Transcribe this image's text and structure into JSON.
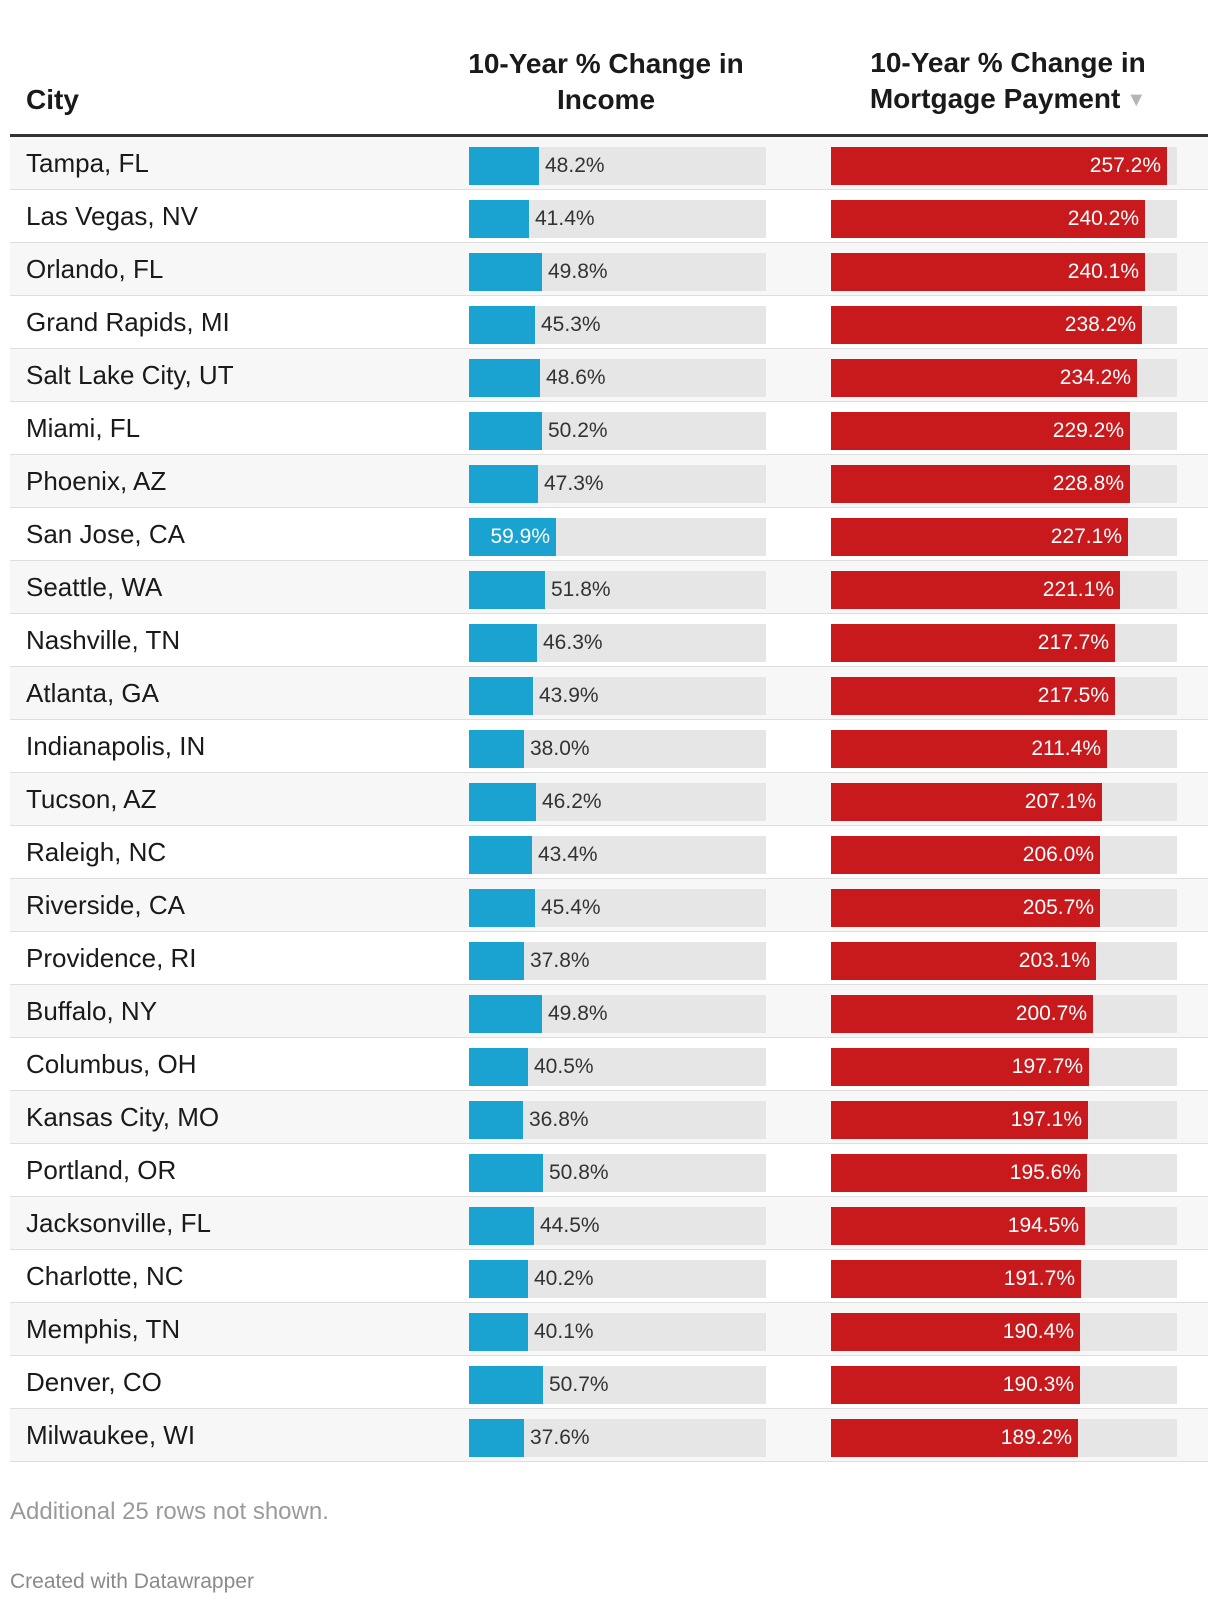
{
  "columns": {
    "city": "City",
    "income_line1": "10-Year % Change in",
    "income_line2": "Income",
    "mortgage_line1": "10-Year % Change in",
    "mortgage_line2": "Mortgage Payment",
    "sort_icon": "sort-descending-icon"
  },
  "colors": {
    "income_bar": "#1aa3d1",
    "mortgage_bar": "#c8191d",
    "track": "#e6e6e6"
  },
  "chart_data": {
    "type": "table",
    "sorted_by": "mortgage_pct",
    "income_max": 59.9,
    "mortgage_max": 257.2,
    "rows": [
      {
        "city": "Tampa, FL",
        "income": "48.2%",
        "income_pct": 48.2,
        "mortgage": "257.2%",
        "mortgage_pct": 257.2
      },
      {
        "city": "Las Vegas, NV",
        "income": "41.4%",
        "income_pct": 41.4,
        "mortgage": "240.2%",
        "mortgage_pct": 240.2
      },
      {
        "city": "Orlando, FL",
        "income": "49.8%",
        "income_pct": 49.8,
        "mortgage": "240.1%",
        "mortgage_pct": 240.1
      },
      {
        "city": "Grand Rapids, MI",
        "income": "45.3%",
        "income_pct": 45.3,
        "mortgage": "238.2%",
        "mortgage_pct": 238.2
      },
      {
        "city": "Salt Lake City, UT",
        "income": "48.6%",
        "income_pct": 48.6,
        "mortgage": "234.2%",
        "mortgage_pct": 234.2
      },
      {
        "city": "Miami, FL",
        "income": "50.2%",
        "income_pct": 50.2,
        "mortgage": "229.2%",
        "mortgage_pct": 229.2
      },
      {
        "city": "Phoenix, AZ",
        "income": "47.3%",
        "income_pct": 47.3,
        "mortgage": "228.8%",
        "mortgage_pct": 228.8
      },
      {
        "city": "San Jose, CA",
        "income": "59.9%",
        "income_pct": 59.9,
        "mortgage": "227.1%",
        "mortgage_pct": 227.1
      },
      {
        "city": "Seattle, WA",
        "income": "51.8%",
        "income_pct": 51.8,
        "mortgage": "221.1%",
        "mortgage_pct": 221.1
      },
      {
        "city": "Nashville, TN",
        "income": "46.3%",
        "income_pct": 46.3,
        "mortgage": "217.7%",
        "mortgage_pct": 217.7
      },
      {
        "city": "Atlanta, GA",
        "income": "43.9%",
        "income_pct": 43.9,
        "mortgage": "217.5%",
        "mortgage_pct": 217.5
      },
      {
        "city": "Indianapolis, IN",
        "income": "38.0%",
        "income_pct": 38.0,
        "mortgage": "211.4%",
        "mortgage_pct": 211.4
      },
      {
        "city": "Tucson, AZ",
        "income": "46.2%",
        "income_pct": 46.2,
        "mortgage": "207.1%",
        "mortgage_pct": 207.1
      },
      {
        "city": "Raleigh, NC",
        "income": "43.4%",
        "income_pct": 43.4,
        "mortgage": "206.0%",
        "mortgage_pct": 206.0
      },
      {
        "city": "Riverside, CA",
        "income": "45.4%",
        "income_pct": 45.4,
        "mortgage": "205.7%",
        "mortgage_pct": 205.7
      },
      {
        "city": "Providence, RI",
        "income": "37.8%",
        "income_pct": 37.8,
        "mortgage": "203.1%",
        "mortgage_pct": 203.1
      },
      {
        "city": "Buffalo, NY",
        "income": "49.8%",
        "income_pct": 49.8,
        "mortgage": "200.7%",
        "mortgage_pct": 200.7
      },
      {
        "city": "Columbus, OH",
        "income": "40.5%",
        "income_pct": 40.5,
        "mortgage": "197.7%",
        "mortgage_pct": 197.7
      },
      {
        "city": "Kansas City, MO",
        "income": "36.8%",
        "income_pct": 36.8,
        "mortgage": "197.1%",
        "mortgage_pct": 197.1
      },
      {
        "city": "Portland, OR",
        "income": "50.8%",
        "income_pct": 50.8,
        "mortgage": "195.6%",
        "mortgage_pct": 195.6
      },
      {
        "city": "Jacksonville, FL",
        "income": "44.5%",
        "income_pct": 44.5,
        "mortgage": "194.5%",
        "mortgage_pct": 194.5
      },
      {
        "city": "Charlotte, NC",
        "income": "40.2%",
        "income_pct": 40.2,
        "mortgage": "191.7%",
        "mortgage_pct": 191.7
      },
      {
        "city": "Memphis, TN",
        "income": "40.1%",
        "income_pct": 40.1,
        "mortgage": "190.4%",
        "mortgage_pct": 190.4
      },
      {
        "city": "Denver, CO",
        "income": "50.7%",
        "income_pct": 50.7,
        "mortgage": "190.3%",
        "mortgage_pct": 190.3
      },
      {
        "city": "Milwaukee, WI",
        "income": "37.6%",
        "income_pct": 37.6,
        "mortgage": "189.2%",
        "mortgage_pct": 189.2
      }
    ]
  },
  "footer": {
    "note": "Additional 25 rows not shown.",
    "credit": "Created with Datawrapper"
  }
}
